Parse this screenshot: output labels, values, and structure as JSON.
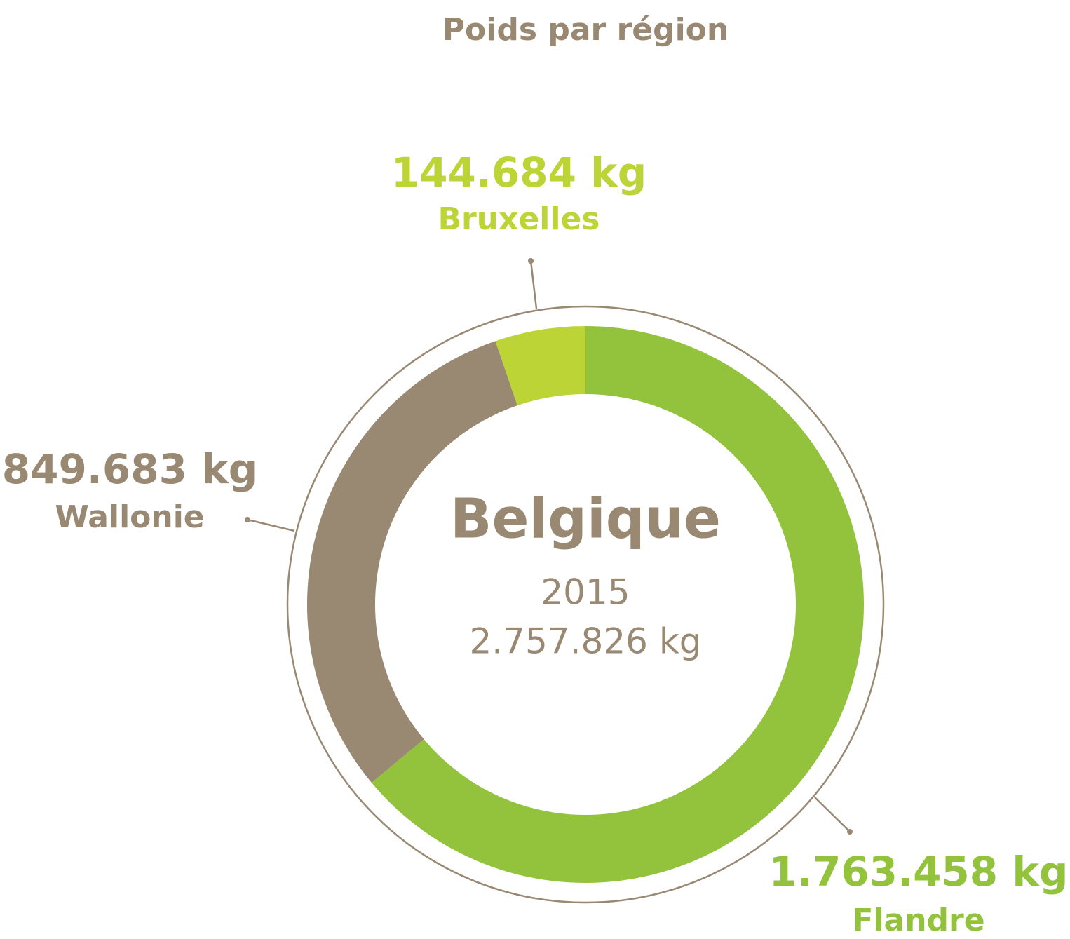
{
  "chart_data": {
    "type": "donut",
    "title": "Poids par région",
    "categories": [
      "Flandre",
      "Wallonie",
      "Bruxelles"
    ],
    "values": [
      1763458,
      849683,
      144684
    ],
    "value_labels": [
      "1.763.458 kg",
      "849.683 kg",
      "144.684 kg"
    ],
    "colors": [
      "#93c23c",
      "#998872",
      "#bcd435"
    ],
    "center": {
      "title": "Belgique",
      "year": "2015",
      "total": "2.757.826 kg"
    }
  }
}
